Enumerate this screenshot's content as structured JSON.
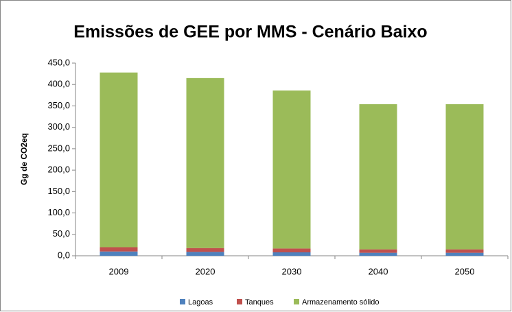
{
  "chart_data": {
    "type": "stacked_bar",
    "title": "Emissões de GEE por MMS - Cenário Baixo",
    "y_label": "Gg de CO2eq",
    "categories": [
      "2009",
      "2020",
      "2030",
      "2040",
      "2050"
    ],
    "series": [
      {
        "name": "Lagoas",
        "color": "#4f81bd",
        "values": [
          10,
          9,
          8,
          7,
          7
        ]
      },
      {
        "name": "Tanques",
        "color": "#c0504d",
        "values": [
          10,
          9,
          9,
          8,
          8
        ]
      },
      {
        "name": "Armazenamento sólido",
        "color": "#9bbb59",
        "values": [
          408,
          397,
          369,
          339,
          339
        ]
      }
    ],
    "ylim": [
      0,
      450
    ],
    "yticks": [
      {
        "value": 0,
        "label": "0,0"
      },
      {
        "value": 50,
        "label": "50,0"
      },
      {
        "value": 100,
        "label": "100,0"
      },
      {
        "value": 150,
        "label": "150,0"
      },
      {
        "value": 200,
        "label": "200,0"
      },
      {
        "value": 250,
        "label": "250,0"
      },
      {
        "value": 300,
        "label": "300,0"
      },
      {
        "value": 350,
        "label": "350,0"
      },
      {
        "value": 400,
        "label": "400,0"
      },
      {
        "value": 450,
        "label": "450,0"
      }
    ],
    "grid": false,
    "legend": "bottom"
  }
}
